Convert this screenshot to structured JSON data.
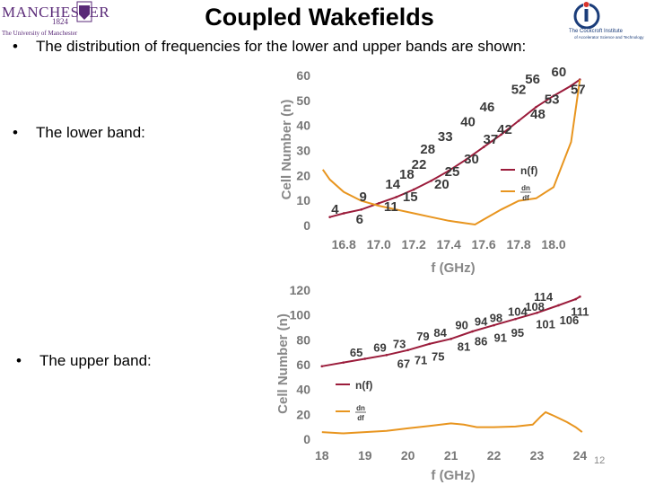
{
  "title": "Coupled Wakefields",
  "page_number": "12",
  "logos": {
    "left": {
      "text": "MANCHESTER",
      "year": "1824",
      "subtitle": "The University of Manchester"
    },
    "right": {
      "text": "The Cockcroft Institute",
      "subtitle": "of Accelerator Science and Technology"
    }
  },
  "bullets": [
    "The distribution of frequencies for the lower and upper bands are shown:",
    "The lower band:",
    "The upper band:"
  ],
  "colors": {
    "n_line": "#9b1c3b",
    "dndf_line": "#e8951f",
    "label_text": "#3a3a3a",
    "axis_text": "#777777",
    "ylabel_text": "#888888"
  },
  "chart_data": [
    {
      "type": "line",
      "band": "lower",
      "xlabel": "f (GHz)",
      "ylabel": "Cell Number (n)",
      "xlim": [
        16.65,
        18.2
      ],
      "ylim": [
        0,
        60
      ],
      "xticks": [
        "16.8",
        "17.0",
        "17.2",
        "17.4",
        "17.6",
        "17.8",
        "18.0"
      ],
      "yticks": [
        "0",
        "10",
        "20",
        "30",
        "40",
        "50",
        "60"
      ],
      "legend": [
        {
          "label": "n(f)",
          "color": "#9b1c3b"
        },
        {
          "label_num": "dn",
          "label_den": "df",
          "color": "#e8951f"
        }
      ],
      "series": [
        {
          "name": "n(f)",
          "color": "#9b1c3b",
          "points": [
            [
              16.72,
              3
            ],
            [
              16.8,
              4.5
            ],
            [
              16.9,
              6
            ],
            [
              17.0,
              8.5
            ],
            [
              17.1,
              11
            ],
            [
              17.2,
              14
            ],
            [
              17.3,
              17.5
            ],
            [
              17.4,
              21.5
            ],
            [
              17.5,
              26
            ],
            [
              17.6,
              31
            ],
            [
              17.7,
              36
            ],
            [
              17.8,
              41.5
            ],
            [
              17.9,
              47
            ],
            [
              18.0,
              51.5
            ],
            [
              18.1,
              55.5
            ],
            [
              18.15,
              58
            ]
          ]
        },
        {
          "name": "dn/df",
          "color": "#e8951f",
          "points": [
            [
              16.68,
              22
            ],
            [
              16.72,
              18
            ],
            [
              16.8,
              13
            ],
            [
              16.9,
              9.5
            ],
            [
              17.0,
              7.5
            ],
            [
              17.1,
              6
            ],
            [
              17.2,
              4.5
            ],
            [
              17.3,
              3
            ],
            [
              17.4,
              1.5
            ],
            [
              17.5,
              0.5
            ],
            [
              17.55,
              0
            ],
            [
              17.6,
              2
            ],
            [
              17.7,
              6
            ],
            [
              17.8,
              9.5
            ],
            [
              17.9,
              10.5
            ],
            [
              18.0,
              15
            ],
            [
              18.1,
              33
            ],
            [
              18.15,
              58
            ]
          ]
        }
      ],
      "annotations": [
        {
          "text": "4",
          "x": 16.75,
          "y": 6.5
        },
        {
          "text": "6",
          "x": 16.89,
          "y": 2.5
        },
        {
          "text": "9",
          "x": 16.91,
          "y": 11.5
        },
        {
          "text": "11",
          "x": 17.07,
          "y": 7.5
        },
        {
          "text": "14",
          "x": 17.08,
          "y": 16.5
        },
        {
          "text": "15",
          "x": 17.18,
          "y": 11.5
        },
        {
          "text": "18",
          "x": 17.16,
          "y": 20.5
        },
        {
          "text": "20",
          "x": 17.36,
          "y": 16.5
        },
        {
          "text": "22",
          "x": 17.23,
          "y": 24.5
        },
        {
          "text": "25",
          "x": 17.42,
          "y": 21.5
        },
        {
          "text": "28",
          "x": 17.28,
          "y": 30.5
        },
        {
          "text": "30",
          "x": 17.53,
          "y": 26.5
        },
        {
          "text": "33",
          "x": 17.38,
          "y": 35.5
        },
        {
          "text": "37",
          "x": 17.64,
          "y": 34.5
        },
        {
          "text": "40",
          "x": 17.51,
          "y": 41.5
        },
        {
          "text": "42",
          "x": 17.72,
          "y": 38.5
        },
        {
          "text": "46",
          "x": 17.62,
          "y": 47.5
        },
        {
          "text": "48",
          "x": 17.91,
          "y": 44.5
        },
        {
          "text": "52",
          "x": 17.8,
          "y": 54.5
        },
        {
          "text": "53",
          "x": 17.99,
          "y": 50.5
        },
        {
          "text": "56",
          "x": 17.88,
          "y": 58.5
        },
        {
          "text": "57",
          "x": 18.14,
          "y": 54.5
        },
        {
          "text": "60",
          "x": 18.03,
          "y": 61.5
        }
      ]
    },
    {
      "type": "line",
      "band": "upper",
      "xlabel": "f (GHz)",
      "ylabel": "Cell Number (n)",
      "xlim": [
        17.9,
        24.2
      ],
      "ylim": [
        0,
        120
      ],
      "xticks": [
        "18",
        "19",
        "20",
        "21",
        "22",
        "23",
        "24"
      ],
      "yticks": [
        "0",
        "20",
        "40",
        "60",
        "80",
        "100",
        "120"
      ],
      "legend": [
        {
          "label": "n(f)",
          "color": "#9b1c3b"
        },
        {
          "label_num": "dn",
          "label_den": "df",
          "color": "#e8951f"
        }
      ],
      "series": [
        {
          "name": "n(f)",
          "color": "#9b1c3b",
          "points": [
            [
              18.0,
              58
            ],
            [
              18.5,
              61
            ],
            [
              19.0,
              64
            ],
            [
              19.5,
              67
            ],
            [
              20.0,
              71
            ],
            [
              20.5,
              76
            ],
            [
              21.0,
              80
            ],
            [
              21.5,
              86
            ],
            [
              22.0,
              91
            ],
            [
              22.5,
              96
            ],
            [
              23.0,
              101
            ],
            [
              23.5,
              107
            ],
            [
              23.9,
              112
            ],
            [
              24.0,
              114
            ]
          ]
        },
        {
          "name": "dn/df",
          "color": "#e8951f",
          "points": [
            [
              18.0,
              5
            ],
            [
              18.5,
              4
            ],
            [
              19.0,
              5
            ],
            [
              19.5,
              6
            ],
            [
              20.0,
              8
            ],
            [
              20.5,
              10
            ],
            [
              21.0,
              12
            ],
            [
              21.3,
              11
            ],
            [
              21.6,
              9
            ],
            [
              22.0,
              9
            ],
            [
              22.5,
              9.5
            ],
            [
              22.9,
              11
            ],
            [
              23.1,
              18
            ],
            [
              23.2,
              21
            ],
            [
              23.4,
              18
            ],
            [
              23.7,
              13
            ],
            [
              23.9,
              9
            ],
            [
              24.05,
              5
            ]
          ]
        }
      ],
      "annotations": [
        {
          "text": "65",
          "x": 18.8,
          "y": 70
        },
        {
          "text": "67",
          "x": 19.9,
          "y": 61
        },
        {
          "text": "69",
          "x": 19.35,
          "y": 74
        },
        {
          "text": "71",
          "x": 20.3,
          "y": 64
        },
        {
          "text": "73",
          "x": 19.8,
          "y": 77
        },
        {
          "text": "75",
          "x": 20.7,
          "y": 67
        },
        {
          "text": "79",
          "x": 20.35,
          "y": 83
        },
        {
          "text": "81",
          "x": 21.3,
          "y": 75
        },
        {
          "text": "84",
          "x": 20.75,
          "y": 86
        },
        {
          "text": "86",
          "x": 21.7,
          "y": 79
        },
        {
          "text": "90",
          "x": 21.25,
          "y": 92
        },
        {
          "text": "91",
          "x": 22.15,
          "y": 82
        },
        {
          "text": "94",
          "x": 21.7,
          "y": 95
        },
        {
          "text": "95",
          "x": 22.55,
          "y": 86
        },
        {
          "text": "98",
          "x": 22.05,
          "y": 98
        },
        {
          "text": "101",
          "x": 23.2,
          "y": 93
        },
        {
          "text": "104",
          "x": 22.55,
          "y": 103
        },
        {
          "text": "108",
          "x": 22.95,
          "y": 107
        },
        {
          "text": "106",
          "x": 23.75,
          "y": 96
        },
        {
          "text": "114",
          "x": 23.15,
          "y": 115
        },
        {
          "text": "111",
          "x": 24.0,
          "y": 103
        }
      ]
    }
  ]
}
